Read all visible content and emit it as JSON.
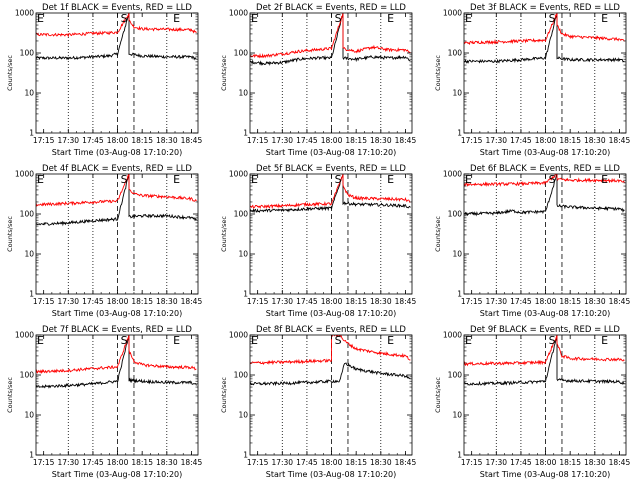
{
  "chart_data": [
    {
      "type": "line",
      "title": "Det 1f BLACK = Events, RED = LLD",
      "xlabel": "Start Time (03-Aug-08 17:10:20)",
      "ylabel": "Counts/sec",
      "xlim": [
        "17:10:20",
        "18:49:00"
      ],
      "ylim": [
        1,
        1000
      ],
      "yscale": "log",
      "xticks": [
        "17:15",
        "17:30",
        "17:45",
        "18:00",
        "18:15",
        "18:30",
        "18:45"
      ],
      "yticks": [
        "1",
        "10",
        "100",
        "1000"
      ],
      "markers": [
        "E",
        "S",
        "E"
      ],
      "series": [
        {
          "color": "#000000",
          "t": [
            "17:10",
            "17:30",
            "17:45",
            "17:55",
            "18:00",
            "18:07",
            "18:07",
            "18:15",
            "18:30",
            "18:45",
            "18:48"
          ],
          "values": [
            75,
            75,
            80,
            85,
            95,
            1000,
            95,
            85,
            80,
            80,
            72
          ]
        },
        {
          "color": "#ff0000",
          "t": [
            "17:10",
            "17:30",
            "17:45",
            "17:55",
            "18:00",
            "18:07",
            "18:07",
            "18:10",
            "18:15",
            "18:30",
            "18:45",
            "18:48"
          ],
          "values": [
            290,
            285,
            310,
            320,
            330,
            1000,
            650,
            450,
            400,
            390,
            380,
            320
          ]
        }
      ]
    },
    {
      "type": "line",
      "title": "Det 2f BLACK = Events, RED = LLD",
      "xlabel": "Start Time (03-Aug-08 17:10:20)",
      "ylabel": "Counts/sec",
      "xlim": [
        "17:10:20",
        "18:49:00"
      ],
      "ylim": [
        1,
        1000
      ],
      "yscale": "log",
      "xticks": [
        "17:15",
        "17:30",
        "17:45",
        "18:00",
        "18:15",
        "18:30",
        "18:45"
      ],
      "yticks": [
        "1",
        "10",
        "100",
        "1000"
      ],
      "markers": [
        "E",
        "S",
        "E"
      ],
      "series": [
        {
          "color": "#000000",
          "t": [
            "17:10",
            "17:20",
            "17:30",
            "17:40",
            "17:50",
            "18:00",
            "18:07",
            "18:07",
            "18:15",
            "18:25",
            "18:35",
            "18:45",
            "18:48"
          ],
          "values": [
            60,
            55,
            58,
            70,
            75,
            75,
            1000,
            75,
            70,
            80,
            75,
            80,
            65
          ]
        },
        {
          "color": "#ff0000",
          "t": [
            "17:10",
            "17:20",
            "17:30",
            "17:40",
            "17:50",
            "18:00",
            "18:07",
            "18:07",
            "18:15",
            "18:25",
            "18:35",
            "18:45",
            "18:48"
          ],
          "values": [
            85,
            85,
            95,
            110,
            120,
            130,
            1000,
            130,
            110,
            140,
            120,
            120,
            100
          ]
        }
      ]
    },
    {
      "type": "line",
      "title": "Det 3f BLACK = Events, RED = LLD",
      "xlabel": "Start Time (03-Aug-08 17:10:20)",
      "ylabel": "Counts/sec",
      "xlim": [
        "17:10:20",
        "18:49:00"
      ],
      "ylim": [
        1,
        1000
      ],
      "yscale": "log",
      "xticks": [
        "17:15",
        "17:30",
        "17:45",
        "18:00",
        "18:15",
        "18:30",
        "18:45"
      ],
      "yticks": [
        "1",
        "10",
        "100",
        "1000"
      ],
      "markers": [
        "E",
        "S",
        "E"
      ],
      "series": [
        {
          "color": "#000000",
          "t": [
            "17:10",
            "17:30",
            "17:45",
            "18:00",
            "18:07",
            "18:07",
            "18:15",
            "18:30",
            "18:45",
            "18:48"
          ],
          "values": [
            62,
            62,
            68,
            75,
            1000,
            75,
            68,
            68,
            68,
            62
          ]
        },
        {
          "color": "#ff0000",
          "t": [
            "17:10",
            "17:30",
            "17:45",
            "18:00",
            "18:07",
            "18:07",
            "18:10",
            "18:15",
            "18:30",
            "18:45",
            "18:48"
          ],
          "values": [
            180,
            190,
            200,
            210,
            1000,
            500,
            300,
            260,
            240,
            220,
            195
          ]
        }
      ]
    },
    {
      "type": "line",
      "title": "Det 4f BLACK = Events, RED = LLD",
      "xlabel": "Start Time (03-Aug-08 17:10:20)",
      "ylabel": "Counts/sec",
      "xlim": [
        "17:10:20",
        "18:49:00"
      ],
      "ylim": [
        1,
        1000
      ],
      "yscale": "log",
      "xticks": [
        "17:15",
        "17:30",
        "17:45",
        "18:00",
        "18:15",
        "18:30",
        "18:45"
      ],
      "yticks": [
        "1",
        "10",
        "100",
        "1000"
      ],
      "markers": [
        "E",
        "S",
        "E"
      ],
      "series": [
        {
          "color": "#000000",
          "t": [
            "17:10",
            "17:30",
            "17:45",
            "18:00",
            "18:07",
            "18:07",
            "18:15",
            "18:30",
            "18:45",
            "18:48"
          ],
          "values": [
            55,
            60,
            68,
            75,
            1000,
            85,
            90,
            90,
            80,
            70
          ]
        },
        {
          "color": "#ff0000",
          "t": [
            "17:10",
            "17:30",
            "17:45",
            "18:00",
            "18:07",
            "18:07",
            "18:10",
            "18:15",
            "18:30",
            "18:45",
            "18:48"
          ],
          "values": [
            170,
            185,
            200,
            210,
            1000,
            420,
            320,
            290,
            270,
            240,
            210
          ]
        }
      ]
    },
    {
      "type": "line",
      "title": "Det 5f BLACK = Events, RED = LLD",
      "xlabel": "Start Time (03-Aug-08 17:10:20)",
      "ylabel": "Counts/sec",
      "xlim": [
        "17:10:20",
        "18:49:00"
      ],
      "ylim": [
        1,
        1000
      ],
      "yscale": "log",
      "xticks": [
        "17:15",
        "17:30",
        "17:45",
        "18:00",
        "18:15",
        "18:30",
        "18:45"
      ],
      "yticks": [
        "1",
        "10",
        "100",
        "1000"
      ],
      "markers": [
        "E",
        "S",
        "E"
      ],
      "series": [
        {
          "color": "#000000",
          "t": [
            "17:10",
            "17:30",
            "17:45",
            "18:00",
            "18:07",
            "18:07",
            "18:15",
            "18:30",
            "18:45",
            "18:48"
          ],
          "values": [
            120,
            125,
            135,
            140,
            1000,
            190,
            175,
            170,
            160,
            145
          ]
        },
        {
          "color": "#ff0000",
          "t": [
            "17:10",
            "17:30",
            "17:45",
            "18:00",
            "18:07",
            "18:07",
            "18:10",
            "18:15",
            "18:30",
            "18:45",
            "18:48"
          ],
          "values": [
            150,
            160,
            175,
            180,
            1000,
            500,
            300,
            250,
            240,
            230,
            200
          ]
        }
      ]
    },
    {
      "type": "line",
      "title": "Det 6f BLACK = Events, RED = LLD",
      "xlabel": "Start Time (03-Aug-08 17:10:20)",
      "ylabel": "Counts/sec",
      "xlim": [
        "17:10:20",
        "18:49:00"
      ],
      "ylim": [
        1,
        1000
      ],
      "yscale": "log",
      "xticks": [
        "17:15",
        "17:30",
        "17:45",
        "18:00",
        "18:15",
        "18:30",
        "18:45"
      ],
      "yticks": [
        "1",
        "10",
        "100",
        "1000"
      ],
      "markers": [
        "E",
        "S",
        "E"
      ],
      "series": [
        {
          "color": "#000000",
          "t": [
            "17:10",
            "17:30",
            "17:40",
            "17:45",
            "18:00",
            "18:07",
            "18:07",
            "18:15",
            "18:30",
            "18:45",
            "18:48"
          ],
          "values": [
            100,
            105,
            120,
            110,
            115,
            1000,
            160,
            150,
            140,
            135,
            120
          ]
        },
        {
          "color": "#ff0000",
          "t": [
            "17:10",
            "17:30",
            "17:45",
            "18:00",
            "18:07",
            "18:07",
            "18:15",
            "18:30",
            "18:45",
            "18:48"
          ],
          "values": [
            550,
            560,
            570,
            600,
            1000,
            750,
            700,
            700,
            680,
            600
          ]
        }
      ]
    },
    {
      "type": "line",
      "title": "Det 7f BLACK = Events, RED = LLD",
      "xlabel": "Start Time (03-Aug-08 17:10:20)",
      "ylabel": "Counts/sec",
      "xlim": [
        "17:10:20",
        "18:49:00"
      ],
      "ylim": [
        1,
        1000
      ],
      "yscale": "log",
      "xticks": [
        "17:15",
        "17:30",
        "17:45",
        "18:00",
        "18:15",
        "18:30",
        "18:45"
      ],
      "yticks": [
        "1",
        "10",
        "100",
        "1000"
      ],
      "markers": [
        "E",
        "S",
        "E"
      ],
      "series": [
        {
          "color": "#000000",
          "t": [
            "17:10",
            "17:30",
            "17:45",
            "18:00",
            "18:07",
            "18:07",
            "18:15",
            "18:30",
            "18:45",
            "18:48"
          ],
          "values": [
            50,
            55,
            60,
            70,
            1000,
            75,
            70,
            65,
            65,
            55
          ]
        },
        {
          "color": "#ff0000",
          "t": [
            "17:10",
            "17:30",
            "17:45",
            "18:00",
            "18:07",
            "18:07",
            "18:10",
            "18:15",
            "18:30",
            "18:45",
            "18:48"
          ],
          "values": [
            120,
            130,
            145,
            160,
            1000,
            400,
            220,
            180,
            160,
            155,
            140
          ]
        }
      ]
    },
    {
      "type": "line",
      "title": "Det 8f BLACK = Events, RED = LLD",
      "xlabel": "Start Time (03-Aug-08 17:10:20)",
      "ylabel": "Counts/sec",
      "xlim": [
        "17:10:20",
        "18:49:00"
      ],
      "ylim": [
        1,
        1000
      ],
      "yscale": "log",
      "xticks": [
        "17:15",
        "17:30",
        "17:45",
        "18:00",
        "18:15",
        "18:30",
        "18:45"
      ],
      "yticks": [
        "1",
        "10",
        "100",
        "1000"
      ],
      "markers": [
        "E",
        "S",
        "E"
      ],
      "series": [
        {
          "color": "#000000",
          "t": [
            "17:10",
            "17:30",
            "17:45",
            "18:00",
            "18:05",
            "18:08",
            "18:15",
            "18:30",
            "18:45",
            "18:48"
          ],
          "values": [
            60,
            62,
            65,
            70,
            70,
            200,
            140,
            110,
            95,
            80
          ]
        },
        {
          "color": "#ff0000",
          "t": [
            "17:10",
            "17:30",
            "17:45",
            "18:00",
            "18:00",
            "18:05",
            "18:08",
            "18:15",
            "18:30",
            "18:45",
            "18:48"
          ],
          "values": [
            200,
            210,
            220,
            230,
            1000,
            1000,
            700,
            450,
            350,
            300,
            240
          ]
        }
      ]
    },
    {
      "type": "line",
      "title": "Det 9f BLACK = Events, RED = LLD",
      "xlabel": "Start Time (03-Aug-08 17:10:20)",
      "ylabel": "Counts/sec",
      "xlim": [
        "17:10:20",
        "18:49:00"
      ],
      "ylim": [
        1,
        1000
      ],
      "yscale": "log",
      "xticks": [
        "17:15",
        "17:30",
        "17:45",
        "18:00",
        "18:15",
        "18:30",
        "18:45"
      ],
      "yticks": [
        "1",
        "10",
        "100",
        "1000"
      ],
      "markers": [
        "E",
        "S",
        "E"
      ],
      "series": [
        {
          "color": "#000000",
          "t": [
            "17:10",
            "17:30",
            "17:45",
            "18:00",
            "18:07",
            "18:07",
            "18:15",
            "18:30",
            "18:45",
            "18:48"
          ],
          "values": [
            60,
            62,
            65,
            70,
            1000,
            75,
            72,
            70,
            68,
            62
          ]
        },
        {
          "color": "#ff0000",
          "t": [
            "17:10",
            "17:30",
            "17:45",
            "18:00",
            "18:07",
            "18:07",
            "18:10",
            "18:15",
            "18:30",
            "18:45",
            "18:48"
          ],
          "values": [
            190,
            195,
            200,
            210,
            1000,
            600,
            300,
            260,
            250,
            245,
            230
          ]
        }
      ]
    }
  ]
}
